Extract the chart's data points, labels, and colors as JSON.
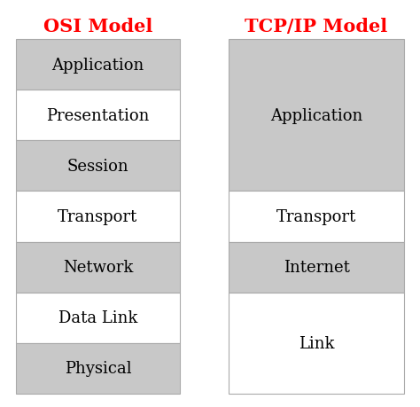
{
  "title_left": "OSI Model",
  "title_right": "TCP/IP Model",
  "title_color": "#ff0000",
  "title_fontsize": 15,
  "background_color": "#ffffff",
  "osi_layers": [
    {
      "label": "Application",
      "color": "#c8c8c8"
    },
    {
      "label": "Presentation",
      "color": "#ffffff"
    },
    {
      "label": "Session",
      "color": "#c8c8c8"
    },
    {
      "label": "Transport",
      "color": "#ffffff"
    },
    {
      "label": "Network",
      "color": "#c8c8c8"
    },
    {
      "label": "Data Link",
      "color": "#ffffff"
    },
    {
      "label": "Physical",
      "color": "#c8c8c8"
    }
  ],
  "tcpip_layers": [
    {
      "label": "Application",
      "color": "#c8c8c8",
      "span": 3
    },
    {
      "label": "Transport",
      "color": "#ffffff",
      "span": 1
    },
    {
      "label": "Internet",
      "color": "#c8c8c8",
      "span": 1
    },
    {
      "label": "Link",
      "color": "#ffffff",
      "span": 2
    }
  ],
  "label_fontsize": 13,
  "edge_color": "#aaaaaa",
  "text_color": "#000000"
}
